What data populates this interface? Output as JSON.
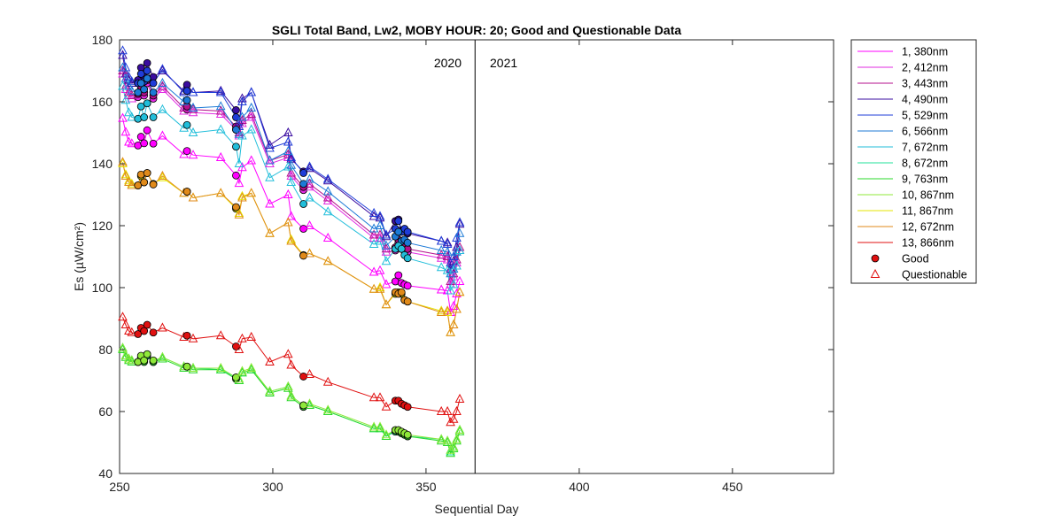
{
  "chart_data": {
    "type": "line",
    "title": "SGLI Total Band,  Lw2, MOBY HOUR: 20;  Good and Questionable Data",
    "xlabel": "Sequential Day",
    "ylabel": "Es (µW/cm²)",
    "xlim": [
      250,
      483
    ],
    "ylim": [
      40,
      180
    ],
    "xticks": [
      250,
      300,
      350,
      400,
      450
    ],
    "yticks": [
      40,
      60,
      80,
      100,
      120,
      140,
      160,
      180
    ],
    "grid": false,
    "legend_position": "outside-right",
    "year_divider": 366,
    "year_labels": [
      "2020",
      "2021"
    ],
    "x": [
      251,
      252,
      253,
      254,
      256,
      257,
      258,
      259,
      261,
      264,
      271,
      272,
      274,
      283,
      288,
      289,
      290,
      293,
      299,
      305,
      306,
      310,
      312,
      318,
      333,
      335,
      337,
      340,
      341,
      342,
      343,
      344,
      355,
      357,
      358,
      359,
      360,
      361
    ],
    "series": [
      {
        "name": "1, 380nm",
        "color": "#FF00FF",
        "values": [
          154.7,
          150.2,
          147.0,
          146.5,
          145.9,
          148.7,
          146.6,
          150.8,
          146.5,
          149.0,
          143.0,
          144.1,
          142.8,
          142.0,
          136.2,
          133.7,
          138.8,
          141.0,
          127.0,
          130.0,
          123.0,
          119.0,
          120.0,
          116.0,
          105.0,
          105.5,
          101.0,
          102.0,
          104.0,
          101.5,
          101.0,
          100.6,
          99.3,
          99.0,
          92.0,
          94.0,
          98.0,
          102.0
        ]
      },
      {
        "name": "2, 412nm",
        "color": "#E22BE2",
        "values": [
          169.0,
          164.0,
          162.0,
          161.0,
          161.5,
          164.0,
          162.0,
          166.0,
          161.0,
          164.0,
          157.0,
          157.5,
          156.5,
          156.0,
          151.0,
          149.0,
          153.0,
          155.0,
          140.0,
          142.0,
          136.0,
          131.5,
          132.5,
          128.0,
          116.0,
          116.0,
          111.5,
          112.0,
          114.5,
          112.5,
          112.0,
          111.5,
          109.5,
          109.0,
          101.0,
          103.5,
          108.0,
          112.0
        ]
      },
      {
        "name": "3, 443nm",
        "color": "#B4108C",
        "values": [
          170.0,
          165.0,
          163.0,
          162.0,
          162.5,
          165.0,
          163.0,
          167.0,
          162.0,
          165.0,
          158.0,
          158.5,
          157.5,
          157.0,
          152.0,
          150.0,
          154.0,
          156.0,
          141.0,
          143.0,
          137.0,
          132.5,
          133.5,
          129.0,
          117.0,
          117.0,
          112.5,
          113.0,
          115.5,
          113.5,
          113.0,
          112.5,
          110.5,
          110.0,
          102.0,
          104.5,
          109.0,
          113.0
        ]
      },
      {
        "name": "4, 490nm",
        "color": "#3A0CA0",
        "values": [
          175.0,
          169.0,
          167.0,
          166.0,
          167.0,
          171.0,
          168.0,
          172.5,
          168.0,
          170.0,
          163.5,
          165.5,
          163.0,
          163.5,
          157.3,
          153.5,
          161.0,
          163.0,
          146.0,
          150.0,
          141.5,
          137.5,
          138.5,
          134.5,
          123.0,
          122.5,
          116.5,
          121.5,
          122.0,
          118.5,
          118.5,
          117.5,
          115.0,
          114.5,
          106.0,
          108.5,
          113.0,
          120.5
        ]
      },
      {
        "name": "5, 529nm",
        "color": "#1F3DD8",
        "values": [
          176.5,
          171.0,
          168.0,
          166.5,
          166.0,
          169.0,
          166.5,
          170.0,
          166.0,
          170.5,
          163.0,
          163.5,
          163.0,
          163.0,
          155.0,
          152.0,
          160.0,
          163.0,
          145.0,
          147.0,
          142.0,
          137.0,
          139.0,
          135.0,
          124.0,
          123.0,
          117.0,
          119.0,
          121.5,
          118.0,
          119.0,
          118.0,
          115.0,
          114.0,
          108.0,
          110.0,
          116.0,
          121.0
        ]
      },
      {
        "name": "6, 566nm",
        "color": "#1C7AD6",
        "values": [
          171.0,
          167.5,
          165.0,
          163.5,
          163.0,
          166.0,
          164.0,
          167.5,
          163.0,
          166.0,
          160.0,
          160.5,
          158.0,
          158.5,
          151.0,
          149.5,
          155.0,
          158.0,
          141.0,
          144.0,
          139.5,
          133.5,
          135.0,
          131.0,
          119.0,
          120.0,
          113.5,
          116.5,
          118.0,
          115.0,
          115.5,
          114.5,
          112.0,
          111.5,
          104.5,
          106.0,
          111.5,
          117.5
        ]
      },
      {
        "name": "7, 672nm",
        "color": "#21BEDA",
        "values": [
          165.0,
          160.5,
          156.5,
          155.0,
          154.5,
          158.5,
          155.0,
          159.5,
          155.0,
          157.5,
          151.5,
          152.5,
          150.0,
          151.0,
          145.5,
          140.0,
          149.0,
          151.0,
          135.5,
          139.0,
          134.0,
          127.0,
          129.0,
          124.5,
          114.0,
          115.0,
          108.5,
          112.5,
          113.5,
          112.5,
          110.5,
          109.5,
          106.5,
          105.5,
          99.0,
          101.0,
          107.0,
          112.0
        ]
      },
      {
        "name": "8, 672nm",
        "color": "#20E29A",
        "values": [
          80.5,
          78.0,
          77.0,
          76.5,
          76.0,
          77.5,
          76.5,
          78.0,
          76.0,
          77.5,
          74.5,
          74.5,
          74.0,
          73.5,
          71.0,
          70.0,
          72.5,
          73.5,
          66.5,
          68.0,
          65.0,
          62.0,
          62.0,
          60.0,
          54.5,
          54.5,
          52.0,
          53.5,
          54.0,
          53.0,
          52.5,
          52.0,
          51.0,
          50.5,
          47.0,
          48.5,
          51.0,
          54.0
        ]
      },
      {
        "name": "9, 763nm",
        "color": "#2BD92B",
        "values": [
          80.0,
          77.5,
          76.5,
          76.0,
          76.0,
          77.5,
          76.0,
          78.5,
          76.0,
          77.0,
          74.0,
          74.5,
          73.5,
          73.5,
          70.5,
          70.0,
          72.5,
          73.5,
          66.0,
          67.5,
          64.5,
          61.5,
          62.0,
          60.0,
          54.5,
          54.5,
          52.0,
          54.0,
          53.5,
          53.0,
          52.5,
          52.0,
          50.5,
          50.0,
          46.5,
          48.0,
          50.5,
          53.5
        ]
      },
      {
        "name": "10, 867nm",
        "color": "#8FE83A",
        "values": [
          80.5,
          78.0,
          77.0,
          76.5,
          76.0,
          78.0,
          76.5,
          78.5,
          76.5,
          77.5,
          74.5,
          74.5,
          74.0,
          74.0,
          71.0,
          70.5,
          73.0,
          74.0,
          66.5,
          68.0,
          65.0,
          62.0,
          62.5,
          60.5,
          55.0,
          55.0,
          52.5,
          54.0,
          54.0,
          53.5,
          53.0,
          52.5,
          51.0,
          50.5,
          47.5,
          48.5,
          51.0,
          54.0
        ]
      },
      {
        "name": "11, 867nm",
        "color": "#E6E600",
        "values": [
          140.0,
          136.5,
          134.5,
          133.5,
          133.0,
          136.0,
          134.0,
          137.0,
          133.5,
          135.5,
          130.5,
          131.0,
          129.0,
          130.5,
          125.5,
          124.0,
          129.5,
          130.5,
          117.5,
          121.0,
          115.5,
          110.5,
          111.0,
          108.5,
          99.5,
          100.0,
          94.5,
          98.0,
          98.5,
          98.0,
          96.0,
          95.5,
          92.5,
          92.0,
          85.5,
          88.0,
          93.0,
          98.5
        ]
      },
      {
        "name": "12, 672nm",
        "color": "#E08A1A",
        "values": [
          140.5,
          136.0,
          134.0,
          133.0,
          133.0,
          136.5,
          134.0,
          137.0,
          133.3,
          136.0,
          130.5,
          131.0,
          129.0,
          130.5,
          126.0,
          123.5,
          129.0,
          130.5,
          117.5,
          121.0,
          115.0,
          110.3,
          111.0,
          108.5,
          99.5,
          99.5,
          94.5,
          98.5,
          98.0,
          98.5,
          96.0,
          95.5,
          92.0,
          92.5,
          85.5,
          88.0,
          93.0,
          98.5
        ]
      },
      {
        "name": "13, 866nm",
        "color": "#E01010",
        "values": [
          90.5,
          88.0,
          86.0,
          85.5,
          85.0,
          87.0,
          86.0,
          88.0,
          85.5,
          87.0,
          84.0,
          84.5,
          83.5,
          84.5,
          81.0,
          80.0,
          83.5,
          84.0,
          76.0,
          78.5,
          75.0,
          71.3,
          72.0,
          69.5,
          64.5,
          64.5,
          61.5,
          63.5,
          63.5,
          62.5,
          62.0,
          61.5,
          60.0,
          60.0,
          56.5,
          57.5,
          60.0,
          64.0
        ]
      }
    ],
    "good_x": [
      256,
      257,
      258,
      259,
      261,
      272,
      288,
      310,
      340,
      341,
      342,
      343,
      344
    ],
    "legend_entries": [
      "1, 380nm",
      "2, 412nm",
      "3, 443nm",
      "4, 490nm",
      "5, 529nm",
      "6, 566nm",
      "7, 672nm",
      "8, 672nm",
      "9, 763nm",
      "10, 867nm",
      "11, 867nm",
      "12, 672nm",
      "13, 866nm",
      "Good",
      "Questionable"
    ]
  }
}
